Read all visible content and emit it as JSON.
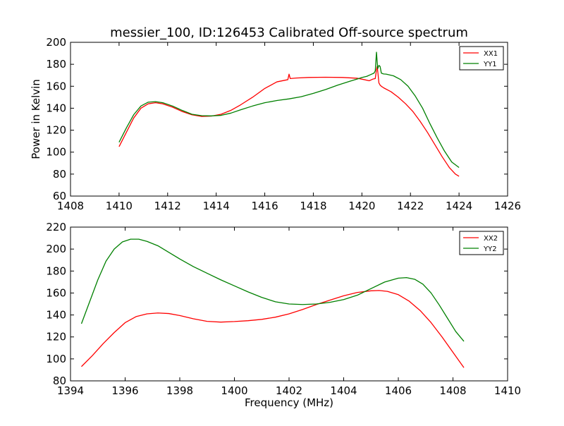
{
  "chart_data": [
    {
      "type": "line",
      "title": "messier_100, ID:126453 Calibrated Off-source spectrum",
      "xlabel": "",
      "ylabel": "Power in Kelvin",
      "xlim": [
        1408,
        1426
      ],
      "ylim": [
        60,
        200
      ],
      "xticks": [
        "1408",
        "1410",
        "1412",
        "1414",
        "1416",
        "1418",
        "1420",
        "1422",
        "1424",
        "1426"
      ],
      "yticks": [
        "60",
        "80",
        "100",
        "120",
        "140",
        "160",
        "180",
        "200"
      ],
      "legend_position": "top-right",
      "series": [
        {
          "name": "XX1",
          "color": "#ff0000",
          "x": [
            1410.0,
            1410.3,
            1410.6,
            1410.9,
            1411.2,
            1411.5,
            1411.8,
            1412.2,
            1412.6,
            1413.0,
            1413.4,
            1413.8,
            1414.2,
            1414.6,
            1415.0,
            1415.5,
            1416.0,
            1416.5,
            1416.95,
            1417.0,
            1417.05,
            1417.3,
            1417.8,
            1418.5,
            1419.2,
            1419.8,
            1420.1,
            1420.3,
            1420.45,
            1420.55,
            1420.6,
            1420.63,
            1420.66,
            1420.7,
            1420.75,
            1420.8,
            1420.9,
            1421.2,
            1421.5,
            1421.8,
            1422.1,
            1422.4,
            1422.7,
            1423.0,
            1423.3,
            1423.6,
            1423.85,
            1424.0
          ],
          "y": [
            105,
            118,
            131,
            140,
            144,
            145,
            144,
            141,
            137,
            134,
            132.5,
            132.8,
            134.5,
            138,
            143,
            150,
            158,
            164,
            166,
            171,
            167,
            167.5,
            168,
            168.2,
            168,
            167.3,
            166,
            165,
            166.5,
            167,
            175,
            178,
            172,
            163,
            161,
            160,
            158.5,
            155,
            150,
            144,
            137,
            128,
            118,
            107,
            96,
            86,
            80,
            78
          ]
        },
        {
          "name": "YY1",
          "color": "#008000",
          "x": [
            1410.0,
            1410.3,
            1410.6,
            1410.9,
            1411.2,
            1411.5,
            1411.8,
            1412.2,
            1412.6,
            1413.0,
            1413.4,
            1413.8,
            1414.2,
            1414.6,
            1415.0,
            1415.5,
            1416.0,
            1416.5,
            1417.0,
            1417.5,
            1418.0,
            1418.5,
            1419.0,
            1419.5,
            1419.8,
            1420.0,
            1420.2,
            1420.35,
            1420.5,
            1420.55,
            1420.6,
            1420.65,
            1420.7,
            1420.75,
            1420.8,
            1420.85,
            1420.9,
            1421.0,
            1421.3,
            1421.6,
            1421.9,
            1422.2,
            1422.5,
            1422.8,
            1423.1,
            1423.4,
            1423.7,
            1424.0
          ],
          "y": [
            109,
            122,
            134,
            142,
            145.5,
            146,
            145,
            142,
            138,
            134.5,
            133.2,
            133,
            133.5,
            135.5,
            138.5,
            142,
            145,
            147,
            148.5,
            150.5,
            153.5,
            157,
            161,
            164.5,
            166.5,
            168,
            169,
            170.5,
            172,
            174,
            191,
            176,
            179,
            178,
            172,
            171.5,
            171.2,
            171,
            169.5,
            166,
            160,
            151,
            140,
            126,
            113,
            101,
            91,
            86
          ]
        }
      ]
    },
    {
      "type": "line",
      "title": "",
      "xlabel": "Frequency (MHz)",
      "ylabel": "",
      "xlim": [
        1394,
        1410
      ],
      "ylim": [
        80,
        220
      ],
      "xticks": [
        "1394",
        "1396",
        "1398",
        "1400",
        "1402",
        "1404",
        "1406",
        "1408",
        "1410"
      ],
      "yticks": [
        "80",
        "100",
        "120",
        "140",
        "160",
        "180",
        "200",
        "220"
      ],
      "legend_position": "top-right",
      "series": [
        {
          "name": "XX2",
          "color": "#ff0000",
          "x": [
            1394.4,
            1394.8,
            1395.2,
            1395.6,
            1396.0,
            1396.4,
            1396.8,
            1397.2,
            1397.6,
            1398.0,
            1398.5,
            1399.0,
            1399.5,
            1400.0,
            1400.5,
            1401.0,
            1401.5,
            1402.0,
            1402.5,
            1403.0,
            1403.5,
            1404.0,
            1404.5,
            1405.0,
            1405.3,
            1405.6,
            1406.0,
            1406.4,
            1406.8,
            1407.2,
            1407.6,
            1408.0,
            1408.4
          ],
          "y": [
            93,
            103,
            114,
            124,
            133,
            138.5,
            141,
            141.8,
            141.3,
            139.5,
            136.5,
            134.2,
            133.5,
            134,
            134.8,
            136,
            138,
            141,
            145,
            149.5,
            153.5,
            157.5,
            160.5,
            162,
            162.3,
            161.5,
            158.5,
            152.5,
            144,
            133,
            120,
            106,
            92
          ]
        },
        {
          "name": "YY2",
          "color": "#008000",
          "x": [
            1394.4,
            1394.7,
            1395.0,
            1395.3,
            1395.6,
            1395.9,
            1396.2,
            1396.5,
            1396.8,
            1397.2,
            1397.6,
            1398.0,
            1398.5,
            1399.0,
            1399.5,
            1400.0,
            1400.5,
            1401.0,
            1401.5,
            1402.0,
            1402.5,
            1403.0,
            1403.5,
            1404.0,
            1404.5,
            1405.0,
            1405.5,
            1406.0,
            1406.3,
            1406.6,
            1406.9,
            1407.2,
            1407.5,
            1407.8,
            1408.1,
            1408.4
          ],
          "y": [
            132,
            152,
            172,
            189,
            200,
            206.5,
            209,
            209,
            207,
            203,
            197,
            191,
            184,
            178,
            172,
            166.5,
            161,
            156,
            152,
            150,
            149.5,
            150,
            151.5,
            154,
            158,
            164,
            170,
            173.5,
            174,
            172.5,
            168,
            160,
            149,
            137,
            125,
            116
          ]
        }
      ]
    }
  ]
}
